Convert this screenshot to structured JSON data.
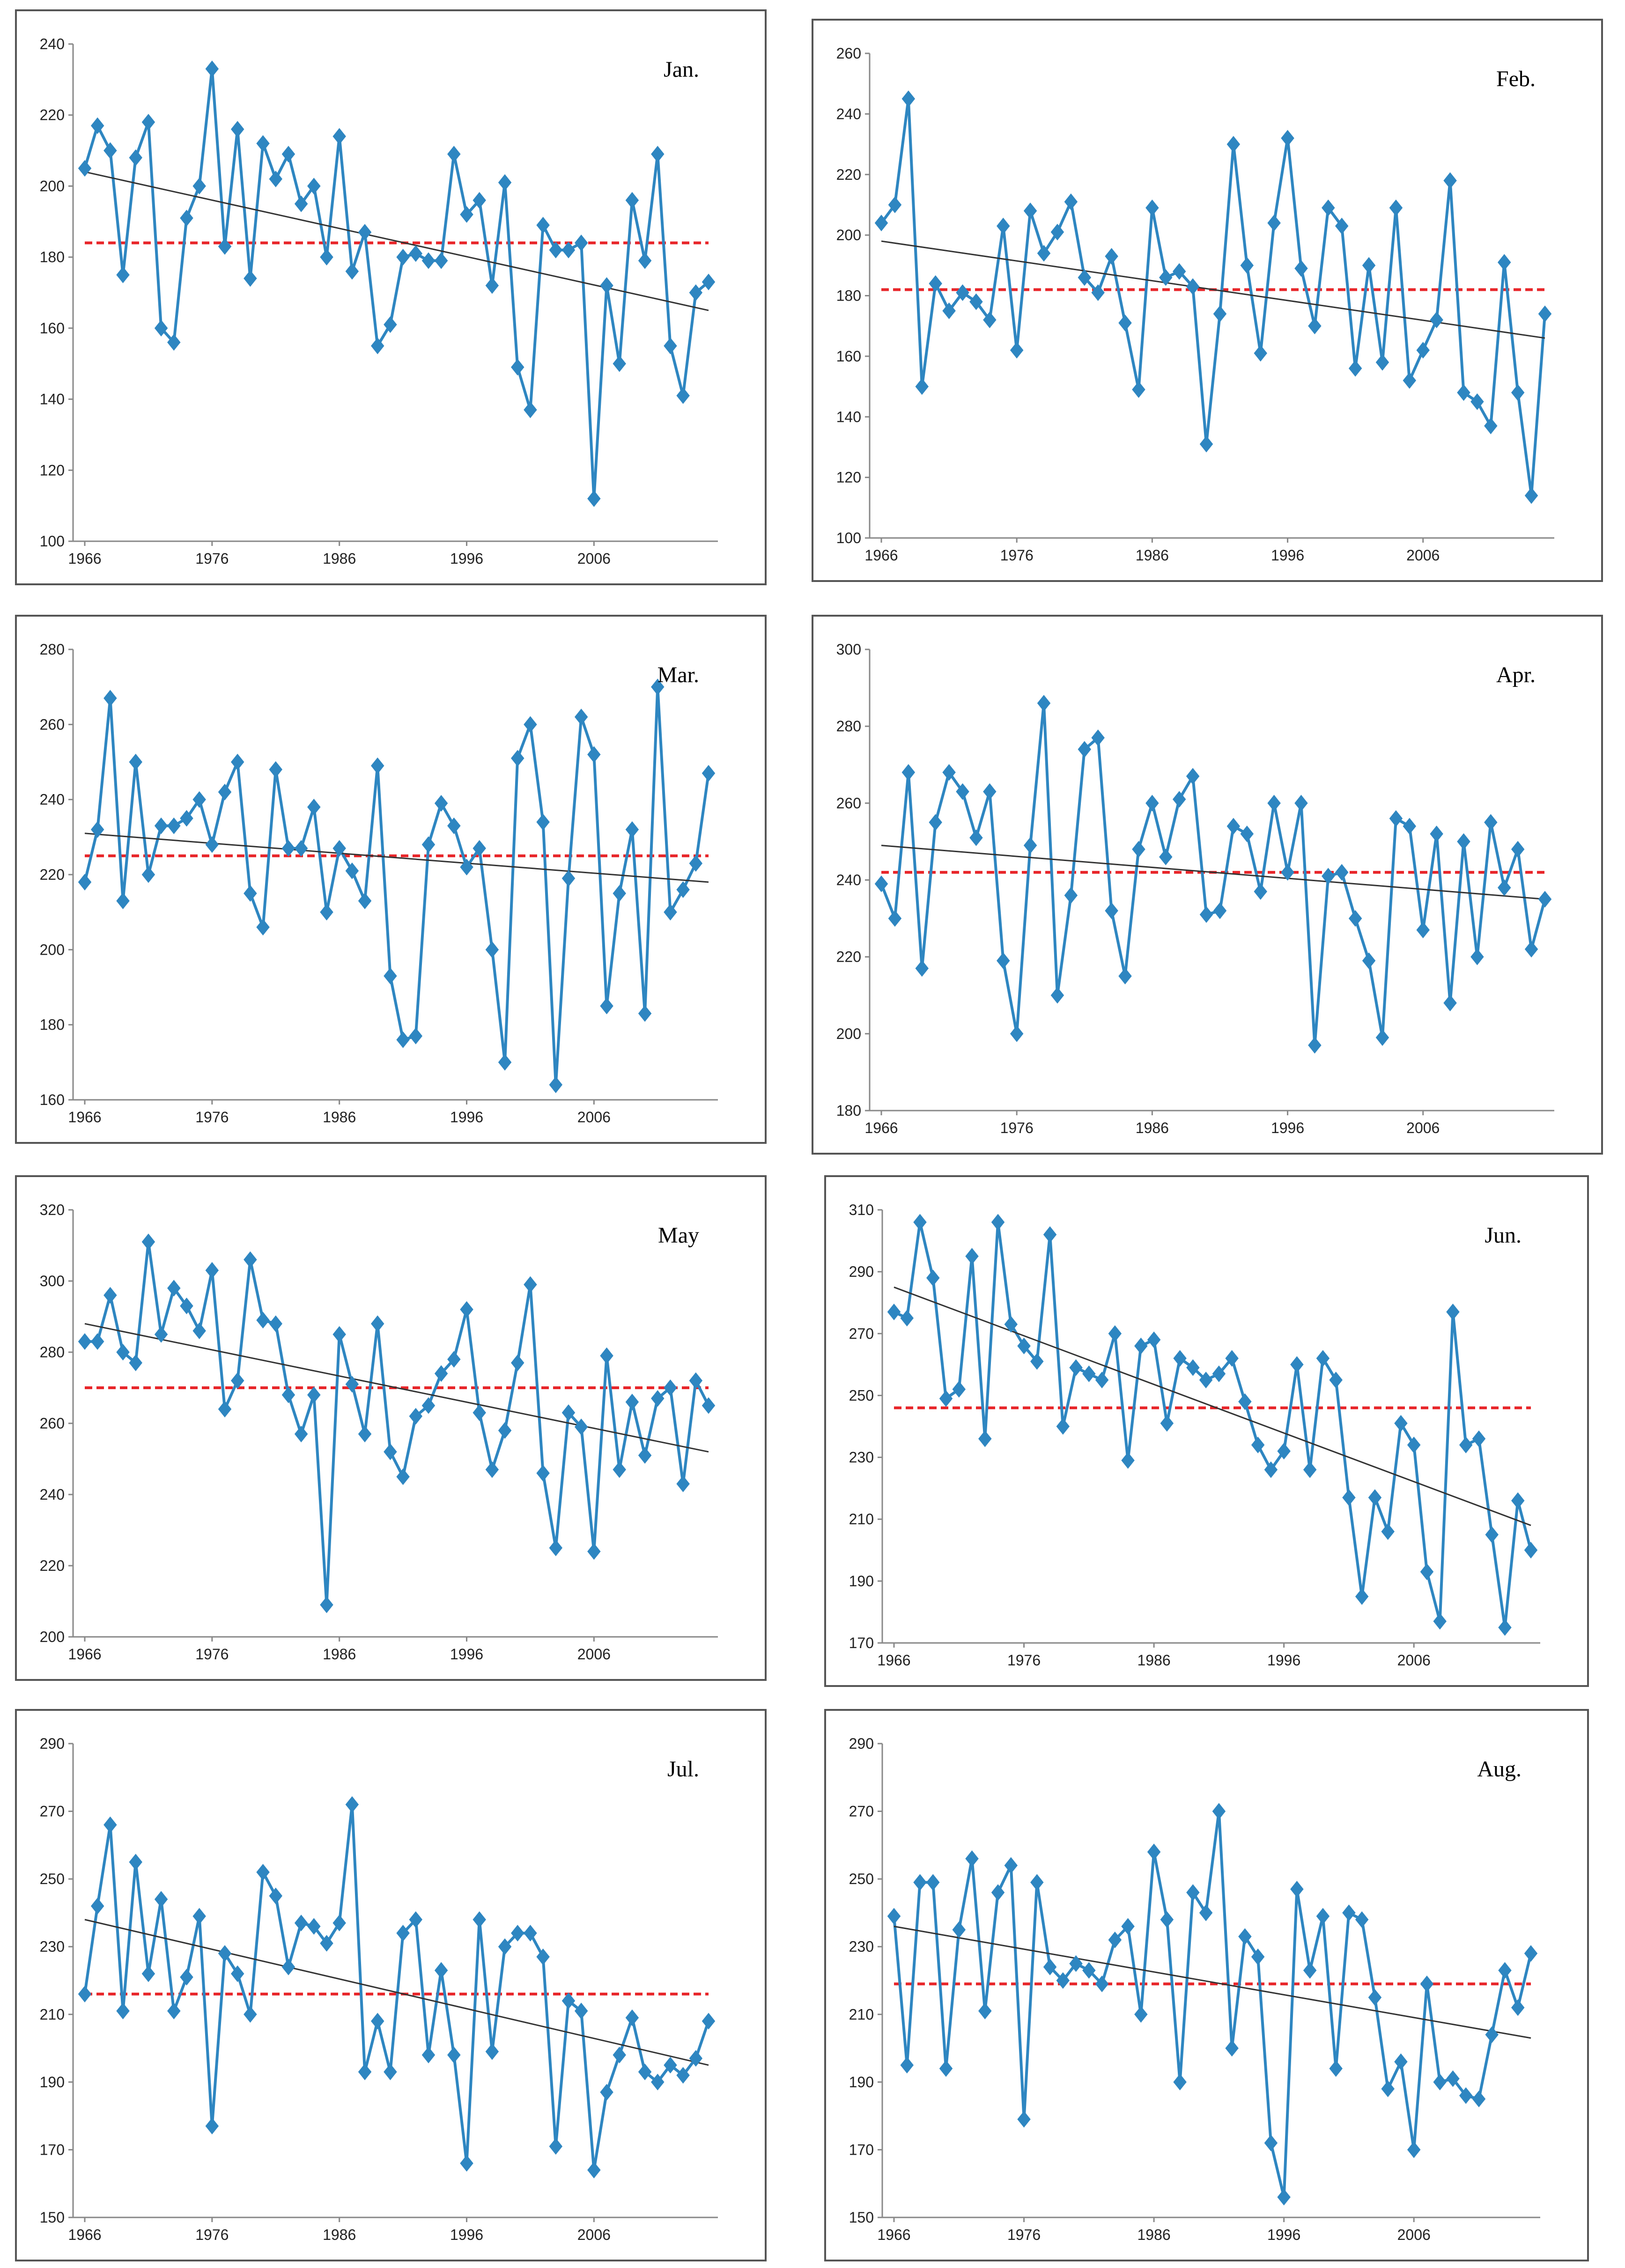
{
  "colors": {
    "series": "#2E86C1",
    "marker": "#2E86C1",
    "mean": "#E8262A",
    "trend": "#333333",
    "axis": "#888888"
  },
  "chart_data": [
    {
      "type": "line",
      "title": "Jan.",
      "x_start": 1966,
      "x_ticks": [
        1966,
        1976,
        1986,
        1996,
        2006
      ],
      "ylim": [
        100,
        240
      ],
      "y_ticks": [
        100,
        120,
        140,
        160,
        180,
        200,
        220,
        240
      ],
      "mean": 184,
      "trend": [
        204,
        165
      ],
      "values": [
        205,
        217,
        210,
        175,
        208,
        218,
        160,
        156,
        191,
        200,
        233,
        183,
        216,
        174,
        212,
        202,
        209,
        195,
        200,
        180,
        214,
        176,
        187,
        155,
        161,
        180,
        181,
        179,
        179,
        209,
        192,
        196,
        172,
        201,
        149,
        137,
        189,
        182,
        182,
        184,
        112,
        172,
        150,
        196,
        179,
        209,
        155,
        141,
        170,
        173
      ]
    },
    {
      "type": "line",
      "title": "Feb.",
      "x_start": 1966,
      "x_ticks": [
        1966,
        1976,
        1986,
        1996,
        2006
      ],
      "ylim": [
        100,
        260
      ],
      "y_ticks": [
        100,
        120,
        140,
        160,
        180,
        200,
        220,
        240,
        260
      ],
      "mean": 182,
      "trend": [
        198,
        166
      ],
      "values": [
        204,
        210,
        245,
        150,
        184,
        175,
        181,
        178,
        172,
        203,
        162,
        208,
        194,
        201,
        211,
        186,
        181,
        193,
        171,
        149,
        209,
        186,
        188,
        183,
        131,
        174,
        230,
        190,
        161,
        204,
        232,
        189,
        170,
        209,
        203,
        156,
        190,
        158,
        209,
        152,
        162,
        172,
        218,
        148,
        145,
        137,
        191,
        148,
        114,
        174
      ]
    },
    {
      "type": "line",
      "title": "Mar.",
      "x_start": 1966,
      "x_ticks": [
        1966,
        1976,
        1986,
        1996,
        2006
      ],
      "ylim": [
        160,
        280
      ],
      "y_ticks": [
        160,
        180,
        200,
        220,
        240,
        260,
        280
      ],
      "mean": 225,
      "trend": [
        231,
        218
      ],
      "values": [
        218,
        232,
        267,
        213,
        250,
        220,
        233,
        233,
        235,
        240,
        228,
        242,
        250,
        215,
        206,
        248,
        227,
        227,
        238,
        210,
        227,
        221,
        213,
        249,
        193,
        176,
        177,
        228,
        239,
        233,
        222,
        227,
        200,
        170,
        251,
        260,
        234,
        164,
        219,
        262,
        252,
        185,
        215,
        232,
        183,
        270,
        210,
        216,
        223,
        247
      ]
    },
    {
      "type": "line",
      "title": "Apr.",
      "x_start": 1966,
      "x_ticks": [
        1966,
        1976,
        1986,
        1996,
        2006
      ],
      "ylim": [
        180,
        300
      ],
      "y_ticks": [
        180,
        200,
        220,
        240,
        260,
        280,
        300
      ],
      "mean": 242,
      "trend": [
        249,
        235
      ],
      "values": [
        239,
        230,
        268,
        217,
        255,
        268,
        263,
        251,
        263,
        219,
        200,
        249,
        286,
        210,
        236,
        274,
        277,
        232,
        215,
        248,
        260,
        246,
        261,
        267,
        231,
        232,
        254,
        252,
        237,
        260,
        242,
        260,
        197,
        241,
        242,
        230,
        219,
        199,
        256,
        254,
        227,
        252,
        208,
        250,
        220,
        255,
        238,
        248,
        222,
        235
      ]
    },
    {
      "type": "line",
      "title": "May",
      "x_start": 1966,
      "x_ticks": [
        1966,
        1976,
        1986,
        1996,
        2006
      ],
      "ylim": [
        200,
        320
      ],
      "y_ticks": [
        200,
        220,
        240,
        260,
        280,
        300,
        320
      ],
      "mean": 270,
      "trend": [
        288,
        252
      ],
      "values": [
        283,
        283,
        296,
        280,
        277,
        311,
        285,
        298,
        293,
        286,
        303,
        264,
        272,
        306,
        289,
        288,
        268,
        257,
        268,
        209,
        285,
        271,
        257,
        288,
        252,
        245,
        262,
        265,
        274,
        278,
        292,
        263,
        247,
        258,
        277,
        299,
        246,
        225,
        263,
        259,
        224,
        279,
        247,
        266,
        251,
        267,
        270,
        243,
        272,
        265
      ]
    },
    {
      "type": "line",
      "title": "Jun.",
      "x_start": 1966,
      "x_ticks": [
        1966,
        1976,
        1986,
        1996,
        2006
      ],
      "ylim": [
        170,
        310
      ],
      "y_ticks": [
        170,
        190,
        210,
        230,
        250,
        270,
        290,
        310
      ],
      "mean": 246,
      "trend": [
        285,
        208
      ],
      "values": [
        277,
        275,
        306,
        288,
        249,
        252,
        295,
        236,
        306,
        273,
        266,
        261,
        302,
        240,
        259,
        257,
        255,
        270,
        229,
        266,
        268,
        241,
        262,
        259,
        255,
        257,
        262,
        248,
        234,
        226,
        232,
        260,
        226,
        262,
        255,
        217,
        185,
        217,
        206,
        241,
        234,
        193,
        177,
        277,
        234,
        236,
        205,
        175,
        216,
        200
      ]
    },
    {
      "type": "line",
      "title": "Jul.",
      "x_start": 1966,
      "x_ticks": [
        1966,
        1976,
        1986,
        1996,
        2006
      ],
      "ylim": [
        150,
        290
      ],
      "y_ticks": [
        150,
        170,
        190,
        210,
        230,
        250,
        270,
        290
      ],
      "mean": 216,
      "trend": [
        238,
        195
      ],
      "values": [
        216,
        242,
        266,
        211,
        255,
        222,
        244,
        211,
        221,
        239,
        177,
        228,
        222,
        210,
        252,
        245,
        224,
        237,
        236,
        231,
        237,
        272,
        193,
        208,
        193,
        234,
        238,
        198,
        223,
        198,
        166,
        238,
        199,
        230,
        234,
        234,
        227,
        171,
        214,
        211,
        164,
        187,
        198,
        209,
        193,
        190,
        195,
        192,
        197,
        208
      ]
    },
    {
      "type": "line",
      "title": "Aug.",
      "x_start": 1966,
      "x_ticks": [
        1966,
        1976,
        1986,
        1996,
        2006
      ],
      "ylim": [
        150,
        290
      ],
      "y_ticks": [
        150,
        170,
        190,
        210,
        230,
        250,
        270,
        290
      ],
      "mean": 219,
      "trend": [
        236,
        203
      ],
      "values": [
        239,
        195,
        249,
        249,
        194,
        235,
        256,
        211,
        246,
        254,
        179,
        249,
        224,
        220,
        225,
        223,
        219,
        232,
        236,
        210,
        258,
        238,
        190,
        246,
        240,
        270,
        200,
        233,
        227,
        172,
        156,
        247,
        223,
        239,
        194,
        240,
        238,
        215,
        188,
        196,
        170,
        219,
        190,
        191,
        186,
        185,
        204,
        223,
        212,
        228
      ]
    }
  ]
}
